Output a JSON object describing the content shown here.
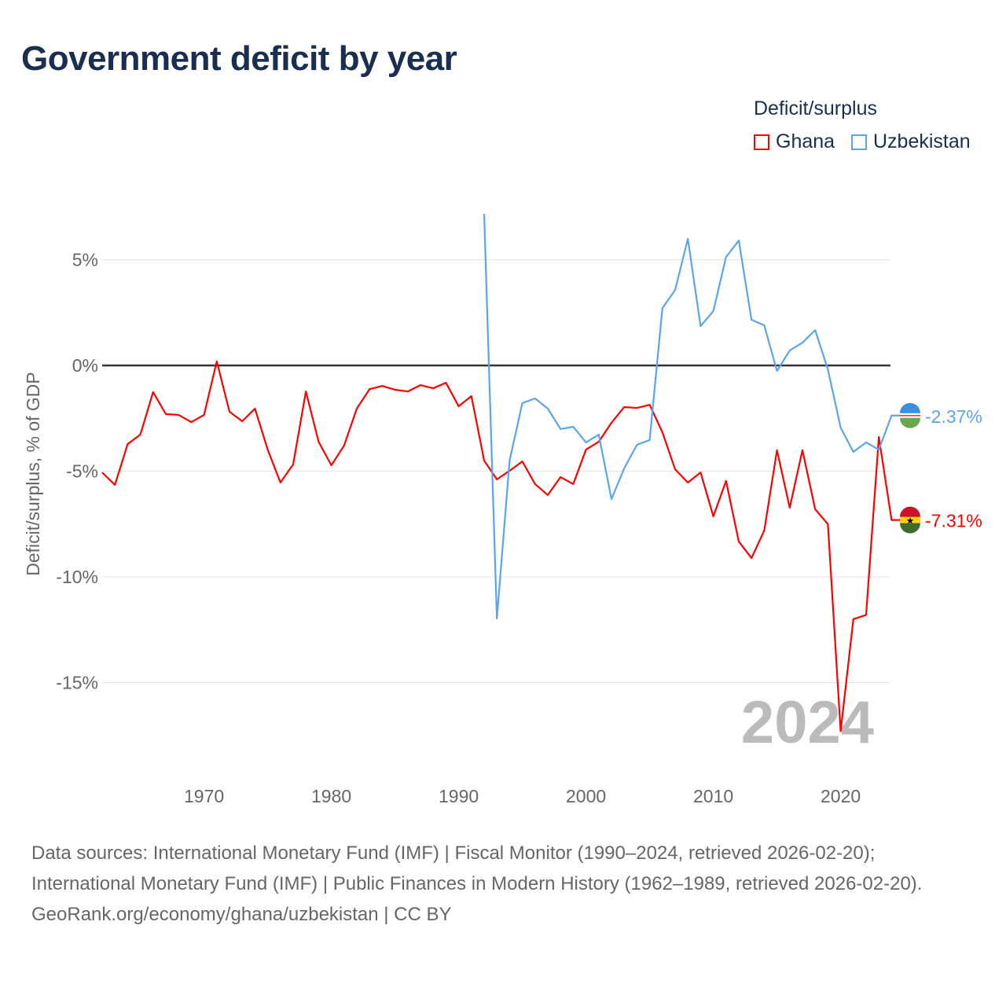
{
  "title": "Government deficit by year",
  "legend": {
    "title": "Deficit/surplus",
    "items": [
      {
        "name": "Ghana",
        "color": "#ff0000"
      },
      {
        "name": "Uzbekistan",
        "color": "#5aa5eb"
      }
    ]
  },
  "year_watermark": "2024",
  "footer": {
    "sources": "Data sources: International Monetary Fund (IMF) | Fiscal Monitor (1990–2024, retrieved 2026-02-20); International Monetary Fund (IMF) | Public Finances in Modern History (1962–1989, retrieved 2026-02-20).",
    "credit": "GeoRank.org/economy/ghana/uzbekistan | CC BY"
  },
  "chart_data": {
    "type": "line",
    "title": "Government deficit by year",
    "xlabel": "",
    "ylabel": "Deficit/surplus, % of GDP",
    "xlim": [
      1962,
      2024
    ],
    "ylim": [
      -18.5,
      7.5
    ],
    "x_ticks": [
      1970,
      1980,
      1990,
      2000,
      2010,
      2020
    ],
    "y_ticks": [
      {
        "v": 5,
        "label": "5%"
      },
      {
        "v": 0,
        "label": "0%"
      },
      {
        "v": -5,
        "label": "-5%"
      },
      {
        "v": -10,
        "label": "-10%"
      },
      {
        "v": -15,
        "label": "-15%"
      }
    ],
    "legend_position": "top-right",
    "series": [
      {
        "name": "Ghana",
        "color": "#ff0000",
        "end_label": "-7.31%",
        "start_year": 1962,
        "values": [
          -5.06,
          -5.65,
          -3.72,
          -3.27,
          -1.26,
          -2.3,
          -2.34,
          -2.68,
          -2.34,
          0.19,
          -2.19,
          -2.64,
          -2.04,
          -3.98,
          -5.54,
          -4.68,
          -1.23,
          -3.61,
          -4.72,
          -3.79,
          -2.04,
          -1.12,
          -0.97,
          -1.15,
          -1.23,
          -0.93,
          -1.08,
          -0.82,
          -1.93,
          -1.45,
          -4.5,
          -5.39,
          -4.98,
          -4.54,
          -5.61,
          -6.13,
          -5.28,
          -5.61,
          -3.98,
          -3.61,
          -2.71,
          -1.97,
          -2.01,
          -1.86,
          -3.16,
          -4.91,
          -5.54,
          -5.06,
          -7.14,
          -5.46,
          -8.33,
          -9.11,
          -7.81,
          -4.01,
          -6.73,
          -4.01,
          -6.8,
          -7.51,
          -17.3,
          -12.0,
          -11.8,
          -3.38,
          -7.31
        ]
      },
      {
        "name": "Uzbekistan",
        "color": "#5aa5eb",
        "end_label": "-2.37%",
        "start_year": 1992,
        "values": [
          7.17,
          -11.97,
          -4.5,
          -1.78,
          -1.56,
          -2.04,
          -3.01,
          -2.9,
          -3.64,
          -3.27,
          -6.32,
          -4.87,
          -3.75,
          -3.53,
          2.71,
          3.57,
          5.99,
          1.86,
          2.57,
          5.13,
          5.91,
          2.16,
          1.9,
          -0.26,
          0.71,
          1.08,
          1.67,
          -0.19,
          -2.94,
          -4.09,
          -3.64,
          -3.98,
          -2.37
        ]
      }
    ]
  }
}
